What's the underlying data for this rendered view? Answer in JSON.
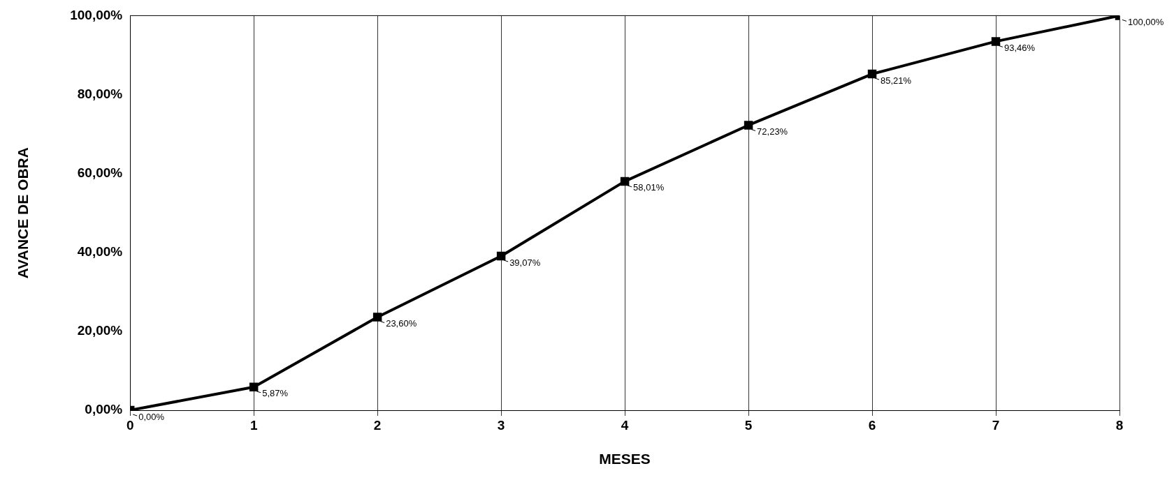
{
  "chart_data": {
    "type": "line",
    "xlabel": "MESES",
    "ylabel": "AVANCE DE OBRA",
    "x": [
      0,
      1,
      2,
      3,
      4,
      5,
      6,
      7,
      8
    ],
    "series": [
      {
        "color": "#000000",
        "values": [
          0,
          5.87,
          23.6,
          39.07,
          58.01,
          72.23,
          85.21,
          93.46,
          100
        ],
        "value_labels": [
          "0,00%",
          "5,87%",
          "23,60%",
          "39,07%",
          "58,01%",
          "72,23%",
          "85,21%",
          "93,46%",
          "100,00%"
        ]
      }
    ],
    "xlim": [
      0,
      8
    ],
    "xticks": [
      0,
      1,
      2,
      3,
      4,
      5,
      6,
      7,
      8
    ],
    "ylim": [
      0,
      100
    ],
    "yticks": [
      {
        "value": 0,
        "label": "0,00%"
      },
      {
        "value": 20,
        "label": "20,00%"
      },
      {
        "value": 40,
        "label": "40,00%"
      },
      {
        "value": 60,
        "label": "60,00%"
      },
      {
        "value": 80,
        "label": "80,00%"
      },
      {
        "value": 100,
        "label": "100,00%"
      }
    ],
    "grid": "x",
    "legend": false,
    "marker": "square",
    "line_style": "solid"
  }
}
